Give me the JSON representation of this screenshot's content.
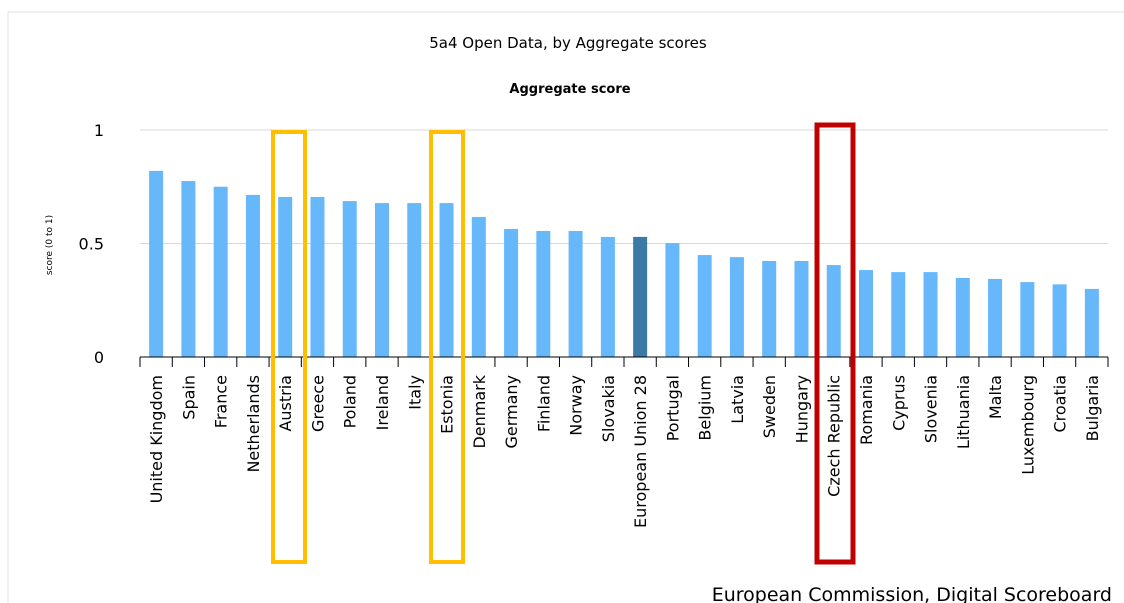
{
  "chart_data": {
    "type": "bar",
    "title": "5a4 Open Data, by Aggregate scores",
    "subtitle": "Aggregate score",
    "y_label": "score (0 to 1)",
    "source": "European Commission, Digital Scoreboard",
    "categories": [
      "United Kingdom",
      "Spain",
      "France",
      "Netherlands",
      "Austria",
      "Greece",
      "Poland",
      "Ireland",
      "Italy",
      "Estonia",
      "Denmark",
      "Germany",
      "Finland",
      "Norway",
      "Slovakia",
      "European Union 28",
      "Portugal",
      "Belgium",
      "Latvia",
      "Sweden",
      "Hungary",
      "Czech Republic",
      "Romania",
      "Cyprus",
      "Slovenia",
      "Lithuania",
      "Malta",
      "Luxembourg",
      "Croatia",
      "Bulgaria"
    ],
    "values": [
      0.82,
      0.775,
      0.75,
      0.714,
      0.705,
      0.705,
      0.687,
      0.678,
      0.678,
      0.678,
      0.617,
      0.564,
      0.555,
      0.555,
      0.529,
      0.529,
      0.502,
      0.449,
      0.44,
      0.423,
      0.423,
      0.405,
      0.383,
      0.374,
      0.374,
      0.348,
      0.344,
      0.33,
      0.32,
      0.3
    ],
    "colors": [
      "#66b8fb",
      "#66b8fb",
      "#66b8fb",
      "#66b8fb",
      "#66b8fb",
      "#66b8fb",
      "#66b8fb",
      "#66b8fb",
      "#66b8fb",
      "#66b8fb",
      "#66b8fb",
      "#66b8fb",
      "#66b8fb",
      "#66b8fb",
      "#66b8fb",
      "#3b79a6",
      "#66b8fb",
      "#66b8fb",
      "#66b8fb",
      "#66b8fb",
      "#66b8fb",
      "#66b8fb",
      "#66b8fb",
      "#66b8fb",
      "#66b8fb",
      "#66b8fb",
      "#66b8fb",
      "#66b8fb",
      "#66b8fb",
      "#66b8fb"
    ],
    "ylim": [
      0,
      1
    ],
    "yticks": [
      0,
      0.5,
      1
    ],
    "grid": true
  }
}
